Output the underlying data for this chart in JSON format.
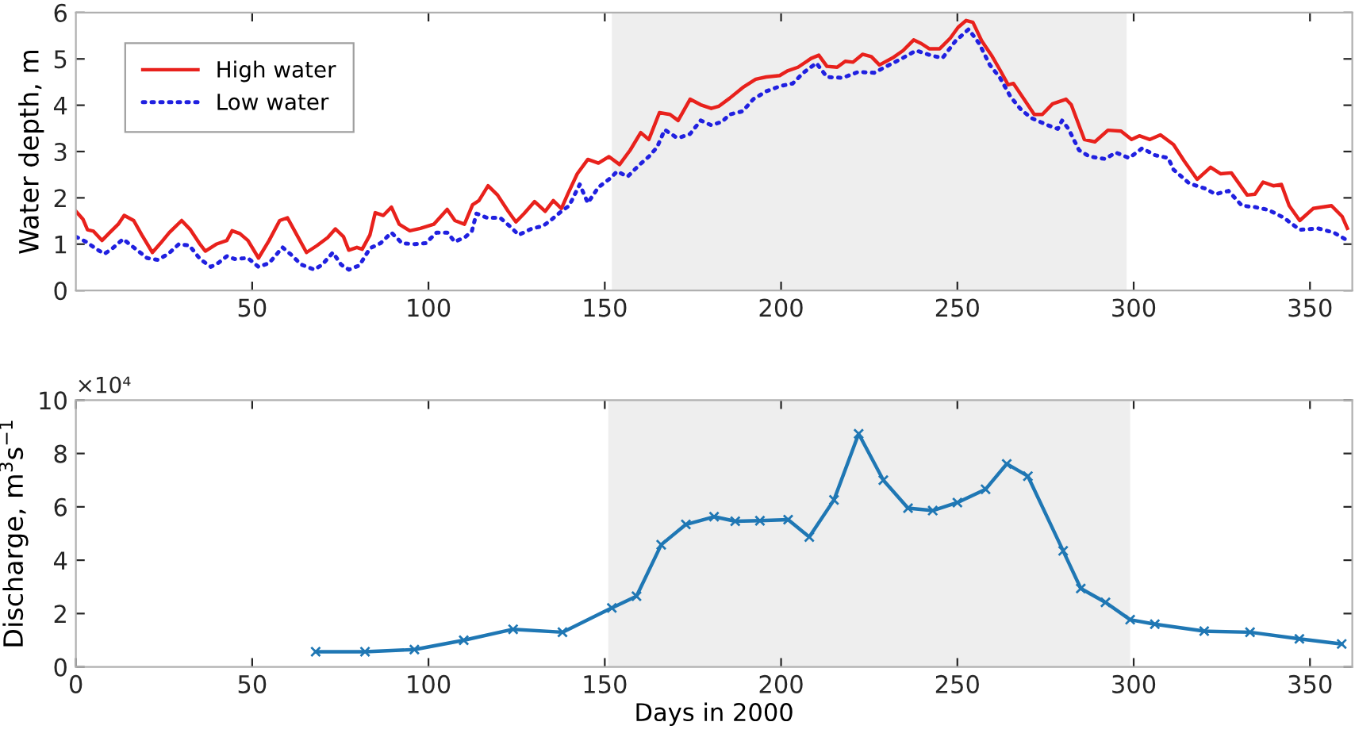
{
  "chart_data": [
    {
      "type": "line",
      "ylabel": "Water depth, m",
      "xlim": [
        0,
        362
      ],
      "ylim": [
        0,
        6
      ],
      "xticks": [
        50,
        100,
        150,
        200,
        250,
        300,
        350
      ],
      "yticks": [
        0,
        1,
        2,
        3,
        4,
        5,
        6
      ],
      "legend": "top left",
      "grid": false,
      "bands": [
        {
          "axis": "x",
          "from": 152,
          "to": 298,
          "color": "#eeeeee"
        }
      ],
      "series": [
        {
          "name": "High water",
          "color": "#e8211c",
          "line_style": "solid",
          "marker": "none",
          "x": [
            0,
            2,
            3.3,
            5,
            7.4,
            9.6,
            12,
            13.7,
            16.4,
            18.7,
            21.7,
            24,
            26.5,
            30,
            32.5,
            35,
            36.7,
            39.8,
            42.8,
            44.3,
            46.5,
            48.8,
            51.8,
            54.8,
            57.8,
            60,
            62.3,
            65.4,
            68.4,
            71.4,
            73.6,
            75.9,
            77.4,
            79.7,
            81.2,
            83.4,
            84.9,
            87.2,
            89.5,
            91.7,
            94.7,
            97.7,
            101.5,
            105.3,
            107.5,
            110.2,
            112.5,
            114.3,
            116.9,
            119.6,
            122.6,
            124.8,
            127.1,
            130.1,
            133.1,
            135.4,
            137.7,
            139.5,
            142.2,
            145.2,
            148.2,
            151.2,
            154.2,
            157.2,
            160.2,
            162.5,
            165.5,
            168.5,
            170.8,
            174.2,
            177.2,
            180.2,
            182.4,
            185.4,
            189.1,
            192.8,
            195.8,
            199.6,
            201.8,
            204.8,
            208.5,
            210.7,
            213,
            215.9,
            218.2,
            220.4,
            223.1,
            225.6,
            227.9,
            231.6,
            234.6,
            237.6,
            239.8,
            242,
            245,
            248,
            250.2,
            252.5,
            254.4,
            256.9,
            259.9,
            262.1,
            264.4,
            265.9,
            268.9,
            271.8,
            274.1,
            277,
            280.8,
            282.3,
            286,
            289,
            292.7,
            296.4,
            299.4,
            301.6,
            304.6,
            307.6,
            311.3,
            314.3,
            318,
            321.8,
            324.7,
            327.7,
            332.2,
            334.4,
            336.7,
            339.6,
            341.9,
            344.1,
            347.1,
            350.9,
            356.1,
            359.1,
            360.6
          ],
          "values": [
            1.71,
            1.54,
            1.31,
            1.28,
            1.08,
            1.25,
            1.43,
            1.62,
            1.51,
            1.2,
            0.82,
            1.02,
            1.25,
            1.51,
            1.31,
            1.02,
            0.85,
            1.0,
            1.08,
            1.29,
            1.23,
            1.08,
            0.7,
            1.08,
            1.51,
            1.57,
            1.25,
            0.82,
            0.97,
            1.14,
            1.33,
            1.16,
            0.87,
            0.93,
            0.89,
            1.2,
            1.68,
            1.62,
            1.8,
            1.43,
            1.29,
            1.34,
            1.43,
            1.75,
            1.51,
            1.43,
            1.85,
            1.94,
            2.26,
            2.06,
            1.71,
            1.48,
            1.66,
            1.92,
            1.71,
            1.94,
            1.77,
            2.08,
            2.52,
            2.83,
            2.75,
            2.89,
            2.72,
            3.03,
            3.41,
            3.26,
            3.84,
            3.8,
            3.67,
            4.13,
            4.01,
            3.93,
            3.98,
            4.15,
            4.38,
            4.56,
            4.61,
            4.64,
            4.74,
            4.82,
            5.01,
            5.08,
            4.84,
            4.82,
            4.95,
            4.93,
            5.1,
            5.05,
            4.87,
            5.02,
            5.18,
            5.41,
            5.33,
            5.22,
            5.22,
            5.45,
            5.68,
            5.83,
            5.79,
            5.39,
            5.05,
            4.76,
            4.44,
            4.47,
            4.13,
            3.8,
            3.8,
            4.03,
            4.13,
            4.01,
            3.26,
            3.21,
            3.46,
            3.44,
            3.26,
            3.34,
            3.26,
            3.36,
            3.15,
            2.8,
            2.4,
            2.66,
            2.52,
            2.54,
            2.06,
            2.08,
            2.34,
            2.26,
            2.29,
            1.83,
            1.51,
            1.77,
            1.83,
            1.6,
            1.34
          ]
        },
        {
          "name": "Low water",
          "color": "#2020e0",
          "line_style": "dotted",
          "marker": "none",
          "x": [
            0,
            2.9,
            5.9,
            8.1,
            10.4,
            13.4,
            16.4,
            20.2,
            23.2,
            26.2,
            29.2,
            32.2,
            35.2,
            38.3,
            40.5,
            42.8,
            45,
            48.8,
            51.8,
            54.8,
            58.6,
            60.8,
            63.9,
            67.6,
            69.9,
            72.9,
            75.2,
            77.4,
            80.4,
            83.4,
            86.4,
            89.5,
            92.5,
            96.2,
            99.2,
            102.3,
            105.3,
            107.5,
            110.5,
            112.3,
            113.6,
            116.6,
            120.3,
            123.3,
            125.6,
            129.4,
            132.4,
            134.6,
            137.7,
            139.9,
            142.9,
            145.2,
            148.2,
            151.2,
            153.5,
            156.5,
            159.5,
            162.5,
            164.8,
            167,
            170,
            171.2,
            174.2,
            177.2,
            180.2,
            183.2,
            185.4,
            189.1,
            192.1,
            195.8,
            199.6,
            203.3,
            206.3,
            210,
            213,
            217.4,
            221.9,
            226.4,
            229.4,
            233.8,
            238.3,
            242.8,
            245.8,
            249.5,
            253.2,
            256.2,
            259.2,
            262.1,
            265.1,
            268.1,
            271.1,
            275.6,
            278.5,
            279.7,
            281.5,
            284.5,
            287.5,
            292,
            294.9,
            298.7,
            302.4,
            306.1,
            309.8,
            311.3,
            315.8,
            320.3,
            323.2,
            326.9,
            330.7,
            334.4,
            338.2,
            342.6,
            347.1,
            352.3,
            356.8,
            360.6
          ],
          "values": [
            1.16,
            1.05,
            0.89,
            0.79,
            0.91,
            1.11,
            0.93,
            0.7,
            0.66,
            0.79,
            1.0,
            0.97,
            0.68,
            0.51,
            0.6,
            0.74,
            0.68,
            0.7,
            0.51,
            0.59,
            0.93,
            0.79,
            0.56,
            0.45,
            0.56,
            0.82,
            0.56,
            0.45,
            0.54,
            0.91,
            1.02,
            1.25,
            1.02,
            1.0,
            1.02,
            1.25,
            1.25,
            1.05,
            1.16,
            1.28,
            1.66,
            1.57,
            1.57,
            1.37,
            1.2,
            1.34,
            1.39,
            1.51,
            1.71,
            1.83,
            2.29,
            1.89,
            2.23,
            2.4,
            2.57,
            2.46,
            2.69,
            2.89,
            3.09,
            3.47,
            3.32,
            3.3,
            3.38,
            3.67,
            3.57,
            3.64,
            3.8,
            3.87,
            4.13,
            4.3,
            4.41,
            4.47,
            4.7,
            4.91,
            4.61,
            4.59,
            4.72,
            4.7,
            4.82,
            4.99,
            5.18,
            5.07,
            5.02,
            5.39,
            5.64,
            5.33,
            4.87,
            4.59,
            4.18,
            3.9,
            3.72,
            3.57,
            3.49,
            3.67,
            3.49,
            3.03,
            2.89,
            2.84,
            2.98,
            2.86,
            3.07,
            2.92,
            2.86,
            2.61,
            2.31,
            2.2,
            2.08,
            2.15,
            1.83,
            1.8,
            1.74,
            1.57,
            1.31,
            1.34,
            1.25,
            1.08
          ]
        }
      ]
    },
    {
      "type": "line",
      "xlabel": "Days in 2000",
      "ylabel": "Discharge, m$^{3}$s$^{−1}$",
      "annotations": [
        "×10⁴"
      ],
      "xlim": [
        0,
        362
      ],
      "ylim": [
        0,
        10
      ],
      "xticks": [
        0,
        50,
        100,
        150,
        200,
        250,
        300,
        350
      ],
      "yticks": [
        0,
        2,
        4,
        6,
        8,
        10
      ],
      "grid": false,
      "marker": "cross",
      "line_style": "solid",
      "bands": [
        {
          "axis": "x",
          "from": 151,
          "to": 299,
          "color": "#eeeeee"
        }
      ],
      "series": [
        {
          "color": "#1f77b4",
          "x": [
            68,
            82,
            96,
            110,
            124,
            138,
            152,
            159,
            166,
            173,
            181,
            187,
            194,
            202,
            208,
            215,
            222,
            229,
            236,
            243,
            250,
            258,
            264,
            270,
            280,
            285,
            292,
            299,
            306,
            320,
            333,
            347,
            359
          ],
          "values": [
            0.57,
            0.57,
            0.65,
            1.0,
            1.41,
            1.3,
            2.21,
            2.65,
            4.58,
            5.34,
            5.63,
            5.46,
            5.48,
            5.52,
            4.87,
            6.26,
            8.74,
            7.0,
            5.95,
            5.86,
            6.16,
            6.66,
            7.61,
            7.15,
            4.35,
            2.94,
            2.42,
            1.77,
            1.6,
            1.34,
            1.3,
            1.05,
            0.86
          ]
        }
      ]
    }
  ]
}
